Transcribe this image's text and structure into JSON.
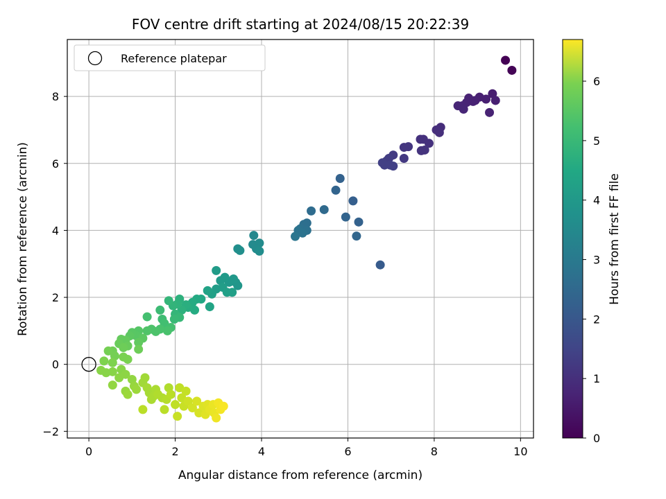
{
  "chart_data": {
    "type": "scatter",
    "title": "FOV centre drift starting at 2024/08/15 20:22:39",
    "xlabel": "Angular distance from reference (arcmin)",
    "ylabel": "Rotation from reference (arcmin)",
    "xlim": [
      -0.5,
      10.3
    ],
    "ylim": [
      -2.2,
      9.7
    ],
    "xticks": [
      0,
      2,
      4,
      6,
      8,
      10
    ],
    "yticks": [
      -2,
      0,
      2,
      4,
      6,
      8
    ],
    "grid": true,
    "legend": {
      "position": "top-left",
      "entries": [
        "Reference platepar"
      ]
    },
    "reference_point": {
      "x": 0,
      "y": 0
    },
    "colorbar": {
      "label": "Hours from first FF file",
      "range": [
        0,
        6.7
      ],
      "ticks": [
        0,
        1,
        2,
        3,
        4,
        5,
        6
      ],
      "colormap": "viridis"
    },
    "points": [
      {
        "x": 9.65,
        "y": 9.08,
        "t": 0.0
      },
      {
        "x": 9.8,
        "y": 8.78,
        "t": 0.05
      },
      {
        "x": 9.35,
        "y": 8.08,
        "t": 0.55
      },
      {
        "x": 9.42,
        "y": 7.88,
        "t": 0.6
      },
      {
        "x": 9.28,
        "y": 7.52,
        "t": 0.65
      },
      {
        "x": 9.2,
        "y": 7.92,
        "t": 0.6
      },
      {
        "x": 9.05,
        "y": 7.98,
        "t": 0.6
      },
      {
        "x": 8.95,
        "y": 7.88,
        "t": 0.62
      },
      {
        "x": 8.8,
        "y": 7.95,
        "t": 0.65
      },
      {
        "x": 8.75,
        "y": 7.82,
        "t": 0.68
      },
      {
        "x": 8.65,
        "y": 7.72,
        "t": 0.7
      },
      {
        "x": 8.55,
        "y": 7.72,
        "t": 0.72
      },
      {
        "x": 8.68,
        "y": 7.62,
        "t": 0.72
      },
      {
        "x": 8.9,
        "y": 7.85,
        "t": 0.64
      },
      {
        "x": 8.15,
        "y": 7.08,
        "t": 0.85
      },
      {
        "x": 8.05,
        "y": 7.0,
        "t": 0.88
      },
      {
        "x": 8.12,
        "y": 6.92,
        "t": 0.9
      },
      {
        "x": 7.88,
        "y": 6.6,
        "t": 0.95
      },
      {
        "x": 7.75,
        "y": 6.72,
        "t": 0.95
      },
      {
        "x": 7.68,
        "y": 6.72,
        "t": 0.95
      },
      {
        "x": 7.78,
        "y": 6.4,
        "t": 1.0
      },
      {
        "x": 7.7,
        "y": 6.38,
        "t": 1.0
      },
      {
        "x": 7.4,
        "y": 6.5,
        "t": 1.05
      },
      {
        "x": 7.3,
        "y": 6.48,
        "t": 1.05
      },
      {
        "x": 7.3,
        "y": 6.15,
        "t": 1.1
      },
      {
        "x": 7.05,
        "y": 6.25,
        "t": 1.15
      },
      {
        "x": 6.95,
        "y": 6.15,
        "t": 1.2
      },
      {
        "x": 6.9,
        "y": 6.08,
        "t": 1.2
      },
      {
        "x": 6.8,
        "y": 6.02,
        "t": 1.25
      },
      {
        "x": 6.85,
        "y": 5.95,
        "t": 1.25
      },
      {
        "x": 6.98,
        "y": 5.95,
        "t": 1.25
      },
      {
        "x": 7.05,
        "y": 5.92,
        "t": 1.25
      },
      {
        "x": 6.75,
        "y": 2.97,
        "t": 1.9
      },
      {
        "x": 5.82,
        "y": 5.55,
        "t": 2.1
      },
      {
        "x": 5.72,
        "y": 5.2,
        "t": 2.15
      },
      {
        "x": 6.12,
        "y": 4.88,
        "t": 2.0
      },
      {
        "x": 5.95,
        "y": 4.4,
        "t": 2.15
      },
      {
        "x": 6.25,
        "y": 4.25,
        "t": 2.1
      },
      {
        "x": 6.2,
        "y": 3.83,
        "t": 2.2
      },
      {
        "x": 5.45,
        "y": 4.62,
        "t": 2.3
      },
      {
        "x": 5.15,
        "y": 4.58,
        "t": 2.35
      },
      {
        "x": 5.05,
        "y": 4.22,
        "t": 2.4
      },
      {
        "x": 4.98,
        "y": 4.18,
        "t": 2.45
      },
      {
        "x": 4.9,
        "y": 4.05,
        "t": 2.5
      },
      {
        "x": 5.05,
        "y": 4.0,
        "t": 2.5
      },
      {
        "x": 4.85,
        "y": 4.0,
        "t": 2.55
      },
      {
        "x": 4.95,
        "y": 3.92,
        "t": 2.55
      },
      {
        "x": 4.78,
        "y": 3.82,
        "t": 2.6
      },
      {
        "x": 3.82,
        "y": 3.85,
        "t": 3.1
      },
      {
        "x": 3.8,
        "y": 3.58,
        "t": 3.15
      },
      {
        "x": 3.95,
        "y": 3.62,
        "t": 3.2
      },
      {
        "x": 3.88,
        "y": 3.45,
        "t": 3.2
      },
      {
        "x": 3.95,
        "y": 3.38,
        "t": 3.25
      },
      {
        "x": 3.45,
        "y": 3.45,
        "t": 3.3
      },
      {
        "x": 3.5,
        "y": 3.4,
        "t": 3.3
      },
      {
        "x": 3.4,
        "y": 2.45,
        "t": 3.5
      },
      {
        "x": 3.45,
        "y": 2.35,
        "t": 3.5
      },
      {
        "x": 3.35,
        "y": 2.55,
        "t": 3.55
      },
      {
        "x": 3.25,
        "y": 2.45,
        "t": 3.55
      },
      {
        "x": 3.15,
        "y": 2.6,
        "t": 3.6
      },
      {
        "x": 3.05,
        "y": 2.5,
        "t": 3.6
      },
      {
        "x": 2.95,
        "y": 2.8,
        "t": 3.65
      },
      {
        "x": 3.1,
        "y": 2.3,
        "t": 3.7
      },
      {
        "x": 2.95,
        "y": 2.25,
        "t": 3.7
      },
      {
        "x": 3.2,
        "y": 2.15,
        "t": 3.75
      },
      {
        "x": 3.32,
        "y": 2.15,
        "t": 3.75
      },
      {
        "x": 2.85,
        "y": 2.1,
        "t": 3.8
      },
      {
        "x": 2.75,
        "y": 2.2,
        "t": 3.85
      },
      {
        "x": 2.8,
        "y": 1.72,
        "t": 3.9
      },
      {
        "x": 2.6,
        "y": 1.95,
        "t": 4.0
      },
      {
        "x": 2.5,
        "y": 1.95,
        "t": 4.05
      },
      {
        "x": 2.4,
        "y": 1.85,
        "t": 4.1
      },
      {
        "x": 2.45,
        "y": 1.62,
        "t": 4.1
      },
      {
        "x": 2.3,
        "y": 1.7,
        "t": 4.15
      },
      {
        "x": 2.25,
        "y": 1.78,
        "t": 4.2
      },
      {
        "x": 2.15,
        "y": 1.62,
        "t": 4.25
      },
      {
        "x": 2.1,
        "y": 1.95,
        "t": 4.25
      },
      {
        "x": 2.05,
        "y": 1.8,
        "t": 4.3
      },
      {
        "x": 1.95,
        "y": 1.75,
        "t": 4.35
      },
      {
        "x": 1.85,
        "y": 1.9,
        "t": 4.4
      },
      {
        "x": 2.0,
        "y": 1.5,
        "t": 4.4
      },
      {
        "x": 2.1,
        "y": 1.4,
        "t": 4.45
      },
      {
        "x": 1.98,
        "y": 1.35,
        "t": 4.5
      },
      {
        "x": 1.65,
        "y": 1.62,
        "t": 4.55
      },
      {
        "x": 1.7,
        "y": 1.35,
        "t": 4.6
      },
      {
        "x": 1.75,
        "y": 1.22,
        "t": 4.65
      },
      {
        "x": 1.9,
        "y": 1.1,
        "t": 4.7
      },
      {
        "x": 1.82,
        "y": 1.0,
        "t": 4.75
      },
      {
        "x": 1.65,
        "y": 1.05,
        "t": 4.75
      },
      {
        "x": 1.55,
        "y": 0.98,
        "t": 4.8
      },
      {
        "x": 1.45,
        "y": 1.05,
        "t": 4.8
      },
      {
        "x": 1.35,
        "y": 1.42,
        "t": 4.7
      },
      {
        "x": 1.35,
        "y": 1.0,
        "t": 4.85
      },
      {
        "x": 1.15,
        "y": 1.0,
        "t": 4.9
      },
      {
        "x": 1.1,
        "y": 0.85,
        "t": 4.95
      },
      {
        "x": 1.0,
        "y": 0.95,
        "t": 4.95
      },
      {
        "x": 0.95,
        "y": 0.85,
        "t": 5.0
      },
      {
        "x": 1.25,
        "y": 0.78,
        "t": 5.0
      },
      {
        "x": 1.15,
        "y": 0.65,
        "t": 5.05
      },
      {
        "x": 0.85,
        "y": 0.72,
        "t": 5.1
      },
      {
        "x": 0.75,
        "y": 0.75,
        "t": 5.1
      },
      {
        "x": 0.7,
        "y": 0.62,
        "t": 5.15
      },
      {
        "x": 0.9,
        "y": 0.55,
        "t": 5.15
      },
      {
        "x": 1.15,
        "y": 0.45,
        "t": 5.2
      },
      {
        "x": 0.8,
        "y": 0.5,
        "t": 5.2
      },
      {
        "x": 0.55,
        "y": 0.4,
        "t": 5.25
      },
      {
        "x": 0.45,
        "y": 0.4,
        "t": 5.3
      },
      {
        "x": 0.6,
        "y": 0.25,
        "t": 5.3
      },
      {
        "x": 0.8,
        "y": 0.22,
        "t": 5.35
      },
      {
        "x": 0.9,
        "y": 0.15,
        "t": 5.35
      },
      {
        "x": 0.35,
        "y": 0.1,
        "t": 5.4
      },
      {
        "x": 0.55,
        "y": 0.05,
        "t": 5.4
      },
      {
        "x": 0.28,
        "y": -0.18,
        "t": 5.5
      },
      {
        "x": 0.4,
        "y": -0.25,
        "t": 5.5
      },
      {
        "x": 0.55,
        "y": -0.22,
        "t": 5.5
      },
      {
        "x": 0.75,
        "y": -0.15,
        "t": 5.5
      },
      {
        "x": 0.85,
        "y": -0.3,
        "t": 5.55
      },
      {
        "x": 0.7,
        "y": -0.4,
        "t": 5.55
      },
      {
        "x": 0.55,
        "y": -0.62,
        "t": 5.6
      },
      {
        "x": 1.0,
        "y": -0.45,
        "t": 5.6
      },
      {
        "x": 1.05,
        "y": -0.65,
        "t": 5.65
      },
      {
        "x": 0.85,
        "y": -0.8,
        "t": 5.65
      },
      {
        "x": 0.9,
        "y": -0.9,
        "t": 5.7
      },
      {
        "x": 1.1,
        "y": -0.75,
        "t": 5.7
      },
      {
        "x": 1.25,
        "y": -0.55,
        "t": 5.75
      },
      {
        "x": 1.3,
        "y": -0.4,
        "t": 5.75
      },
      {
        "x": 1.35,
        "y": -0.7,
        "t": 5.8
      },
      {
        "x": 1.4,
        "y": -0.85,
        "t": 5.8
      },
      {
        "x": 1.5,
        "y": -0.95,
        "t": 5.85
      },
      {
        "x": 1.45,
        "y": -1.05,
        "t": 5.85
      },
      {
        "x": 1.55,
        "y": -0.75,
        "t": 5.85
      },
      {
        "x": 1.6,
        "y": -0.9,
        "t": 5.9
      },
      {
        "x": 1.7,
        "y": -1.0,
        "t": 5.9
      },
      {
        "x": 1.85,
        "y": -0.7,
        "t": 5.9
      },
      {
        "x": 1.8,
        "y": -1.05,
        "t": 5.95
      },
      {
        "x": 1.9,
        "y": -0.9,
        "t": 6.0
      },
      {
        "x": 1.75,
        "y": -1.35,
        "t": 6.0
      },
      {
        "x": 1.25,
        "y": -1.35,
        "t": 6.0
      },
      {
        "x": 2.0,
        "y": -1.2,
        "t": 6.05
      },
      {
        "x": 2.1,
        "y": -0.7,
        "t": 6.05
      },
      {
        "x": 2.15,
        "y": -1.0,
        "t": 6.1
      },
      {
        "x": 2.25,
        "y": -0.8,
        "t": 6.1
      },
      {
        "x": 2.2,
        "y": -1.25,
        "t": 6.15
      },
      {
        "x": 2.05,
        "y": -1.55,
        "t": 6.15
      },
      {
        "x": 2.3,
        "y": -1.1,
        "t": 6.2
      },
      {
        "x": 2.4,
        "y": -1.3,
        "t": 6.25
      },
      {
        "x": 2.5,
        "y": -1.1,
        "t": 6.3
      },
      {
        "x": 2.55,
        "y": -1.45,
        "t": 6.3
      },
      {
        "x": 2.65,
        "y": -1.25,
        "t": 6.35
      },
      {
        "x": 2.7,
        "y": -1.5,
        "t": 6.4
      },
      {
        "x": 2.75,
        "y": -1.2,
        "t": 6.4
      },
      {
        "x": 2.8,
        "y": -1.35,
        "t": 6.45
      },
      {
        "x": 2.88,
        "y": -1.2,
        "t": 6.5
      },
      {
        "x": 2.9,
        "y": -1.45,
        "t": 6.5
      },
      {
        "x": 2.95,
        "y": -1.6,
        "t": 6.55
      },
      {
        "x": 3.0,
        "y": -1.15,
        "t": 6.6
      },
      {
        "x": 3.05,
        "y": -1.35,
        "t": 6.6
      },
      {
        "x": 3.12,
        "y": -1.25,
        "t": 6.65
      }
    ]
  }
}
